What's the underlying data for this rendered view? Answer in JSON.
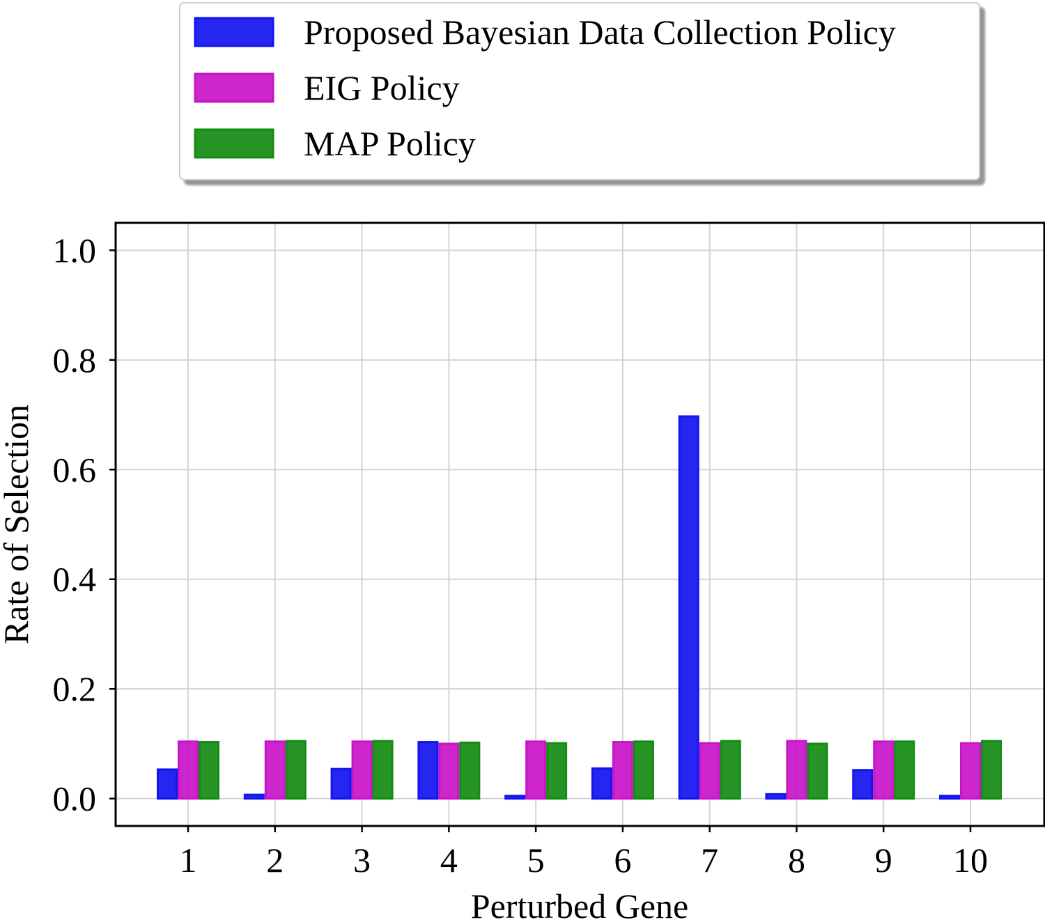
{
  "chart_data": {
    "type": "bar",
    "title": "",
    "xlabel": "Perturbed Gene",
    "ylabel": "Rate of Selection",
    "categories": [
      "1",
      "2",
      "3",
      "4",
      "5",
      "6",
      "7",
      "8",
      "9",
      "10"
    ],
    "ylim": [
      -0.05,
      1.05
    ],
    "yticks": [
      0.0,
      0.2,
      0.4,
      0.6,
      0.8,
      1.0
    ],
    "ytick_labels": [
      "0.0",
      "0.2",
      "0.4",
      "0.6",
      "0.8",
      "1.0"
    ],
    "grid": true,
    "legend_position": "top-center, outside above plot",
    "series": [
      {
        "name": "Proposed Bayesian Data Collection Policy",
        "color": "#1414f0",
        "values": [
          0.053,
          0.007,
          0.054,
          0.103,
          0.005,
          0.055,
          0.697,
          0.008,
          0.052,
          0.005
        ]
      },
      {
        "name": "EIG Policy",
        "color": "#c814c8",
        "values": [
          0.104,
          0.104,
          0.104,
          0.1,
          0.104,
          0.103,
          0.101,
          0.105,
          0.104,
          0.101
        ]
      },
      {
        "name": "MAP Policy",
        "color": "#148c14",
        "values": [
          0.103,
          0.105,
          0.105,
          0.102,
          0.101,
          0.104,
          0.105,
          0.1,
          0.104,
          0.105
        ]
      }
    ]
  }
}
